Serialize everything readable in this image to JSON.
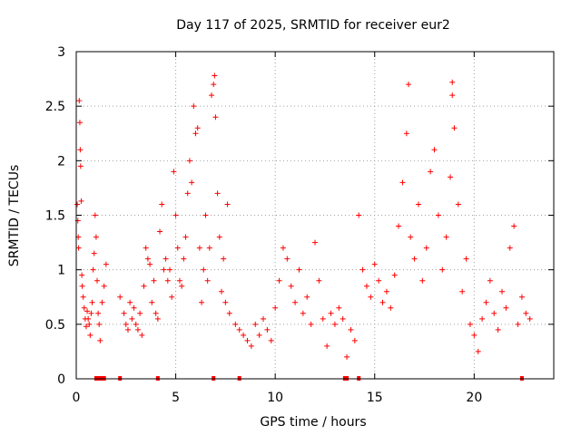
{
  "chart_data": {
    "type": "scatter",
    "title": "Day 117 of 2025, SRMTID for receiver eur2",
    "xlabel": "GPS time / hours",
    "ylabel": "SRMTID / TECUs",
    "xlim": [
      0,
      24
    ],
    "ylim": [
      0,
      3
    ],
    "xticks": [
      0,
      5,
      10,
      15,
      20
    ],
    "yticks": [
      0,
      0.5,
      1,
      1.5,
      2,
      2.5,
      3
    ],
    "ytick_labels": [
      "0",
      "0.5",
      "1",
      "1.5",
      "2",
      "2.5",
      "3"
    ],
    "grid": true,
    "marker": "+",
    "color": "#ff0000",
    "series": [
      {
        "name": "SRMTID",
        "points": [
          [
            0.05,
            1.6
          ],
          [
            0.08,
            1.45
          ],
          [
            0.1,
            1.3
          ],
          [
            0.12,
            1.2
          ],
          [
            0.15,
            2.55
          ],
          [
            0.18,
            2.35
          ],
          [
            0.2,
            2.1
          ],
          [
            0.22,
            1.95
          ],
          [
            0.25,
            1.63
          ],
          [
            0.28,
            0.95
          ],
          [
            0.3,
            0.85
          ],
          [
            0.35,
            0.75
          ],
          [
            0.4,
            0.65
          ],
          [
            0.45,
            0.55
          ],
          [
            0.5,
            0.48
          ],
          [
            0.55,
            0.62
          ],
          [
            0.6,
            0.55
          ],
          [
            0.65,
            0.5
          ],
          [
            0.7,
            0.4
          ],
          [
            0.75,
            0.6
          ],
          [
            0.8,
            0.7
          ],
          [
            0.85,
            1.0
          ],
          [
            0.9,
            1.15
          ],
          [
            0.95,
            1.5
          ],
          [
            1.0,
            1.3
          ],
          [
            1.05,
            0.9
          ],
          [
            1.1,
            0.6
          ],
          [
            1.15,
            0.5
          ],
          [
            1.2,
            0.35
          ],
          [
            1.3,
            0.7
          ],
          [
            1.4,
            0.85
          ],
          [
            1.5,
            1.05
          ],
          [
            2.2,
            0.75
          ],
          [
            2.4,
            0.6
          ],
          [
            2.5,
            0.5
          ],
          [
            2.6,
            0.45
          ],
          [
            2.7,
            0.7
          ],
          [
            2.8,
            0.55
          ],
          [
            2.9,
            0.65
          ],
          [
            3.0,
            0.5
          ],
          [
            3.1,
            0.45
          ],
          [
            3.2,
            0.6
          ],
          [
            3.3,
            0.4
          ],
          [
            3.4,
            0.85
          ],
          [
            3.5,
            1.2
          ],
          [
            3.6,
            1.1
          ],
          [
            3.7,
            1.05
          ],
          [
            3.8,
            0.7
          ],
          [
            3.9,
            0.9
          ],
          [
            4.0,
            0.6
          ],
          [
            4.1,
            0.55
          ],
          [
            4.2,
            1.35
          ],
          [
            4.3,
            1.6
          ],
          [
            4.4,
            1.0
          ],
          [
            4.5,
            1.1
          ],
          [
            4.6,
            0.9
          ],
          [
            4.7,
            1.0
          ],
          [
            4.8,
            0.75
          ],
          [
            4.9,
            1.9
          ],
          [
            5.0,
            1.5
          ],
          [
            5.1,
            1.2
          ],
          [
            5.2,
            0.9
          ],
          [
            5.3,
            0.85
          ],
          [
            5.4,
            1.1
          ],
          [
            5.5,
            1.3
          ],
          [
            5.6,
            1.7
          ],
          [
            5.7,
            2.0
          ],
          [
            5.8,
            1.8
          ],
          [
            5.9,
            2.5
          ],
          [
            6.0,
            2.25
          ],
          [
            6.1,
            2.3
          ],
          [
            6.2,
            1.2
          ],
          [
            6.3,
            0.7
          ],
          [
            6.4,
            1.0
          ],
          [
            6.5,
            1.5
          ],
          [
            6.6,
            0.9
          ],
          [
            6.7,
            1.2
          ],
          [
            6.8,
            2.6
          ],
          [
            6.9,
            2.7
          ],
          [
            7.0,
            2.4
          ],
          [
            7.1,
            1.7
          ],
          [
            7.2,
            1.3
          ],
          [
            7.3,
            0.8
          ],
          [
            7.4,
            1.1
          ],
          [
            7.5,
            0.7
          ],
          [
            7.6,
            1.6
          ],
          [
            7.7,
            0.6
          ],
          [
            8.0,
            0.5
          ],
          [
            8.2,
            0.45
          ],
          [
            8.4,
            0.4
          ],
          [
            8.6,
            0.35
          ],
          [
            8.8,
            0.3
          ],
          [
            9.0,
            0.5
          ],
          [
            9.2,
            0.4
          ],
          [
            9.4,
            0.55
          ],
          [
            9.6,
            0.45
          ],
          [
            9.8,
            0.35
          ],
          [
            10.0,
            0.65
          ],
          [
            10.2,
            0.9
          ],
          [
            10.4,
            1.2
          ],
          [
            10.6,
            1.1
          ],
          [
            10.8,
            0.85
          ],
          [
            11.0,
            0.7
          ],
          [
            11.2,
            1.0
          ],
          [
            11.4,
            0.6
          ],
          [
            11.6,
            0.75
          ],
          [
            11.8,
            0.5
          ],
          [
            12.0,
            1.25
          ],
          [
            12.2,
            0.9
          ],
          [
            12.4,
            0.55
          ],
          [
            12.6,
            0.3
          ],
          [
            12.8,
            0.6
          ],
          [
            13.0,
            0.5
          ],
          [
            13.2,
            0.65
          ],
          [
            13.4,
            0.55
          ],
          [
            13.6,
            0.2
          ],
          [
            13.8,
            0.45
          ],
          [
            14.0,
            0.35
          ],
          [
            14.2,
            1.5
          ],
          [
            14.4,
            1.0
          ],
          [
            14.6,
            0.85
          ],
          [
            14.8,
            0.75
          ],
          [
            15.0,
            1.05
          ],
          [
            15.2,
            0.9
          ],
          [
            15.4,
            0.7
          ],
          [
            15.6,
            0.8
          ],
          [
            15.8,
            0.65
          ],
          [
            16.0,
            0.95
          ],
          [
            16.2,
            1.4
          ],
          [
            16.4,
            1.8
          ],
          [
            16.6,
            2.25
          ],
          [
            16.8,
            1.3
          ],
          [
            17.0,
            1.1
          ],
          [
            17.2,
            1.6
          ],
          [
            17.4,
            0.9
          ],
          [
            17.6,
            1.2
          ],
          [
            17.8,
            1.9
          ],
          [
            18.0,
            2.1
          ],
          [
            18.2,
            1.5
          ],
          [
            18.4,
            1.0
          ],
          [
            18.6,
            1.3
          ],
          [
            18.8,
            1.85
          ],
          [
            18.9,
            2.6
          ],
          [
            19.0,
            2.3
          ],
          [
            19.2,
            1.6
          ],
          [
            19.4,
            0.8
          ],
          [
            19.6,
            1.1
          ],
          [
            19.8,
            0.5
          ],
          [
            20.0,
            0.4
          ],
          [
            20.2,
            0.25
          ],
          [
            20.4,
            0.55
          ],
          [
            20.6,
            0.7
          ],
          [
            20.8,
            0.9
          ],
          [
            21.0,
            0.6
          ],
          [
            21.2,
            0.45
          ],
          [
            21.4,
            0.8
          ],
          [
            21.6,
            0.65
          ],
          [
            21.8,
            1.2
          ],
          [
            22.0,
            1.4
          ],
          [
            22.2,
            0.5
          ],
          [
            22.4,
            0.75
          ],
          [
            22.6,
            0.6
          ],
          [
            22.8,
            0.55
          ],
          [
            16.7,
            2.7
          ],
          [
            18.9,
            2.72
          ],
          [
            6.95,
            2.78
          ]
        ]
      }
    ],
    "zero_markers_x": [
      1.0,
      1.1,
      1.2,
      1.3,
      1.4,
      2.2,
      4.1,
      6.9,
      8.2,
      13.5,
      13.6,
      14.2,
      22.4
    ]
  }
}
